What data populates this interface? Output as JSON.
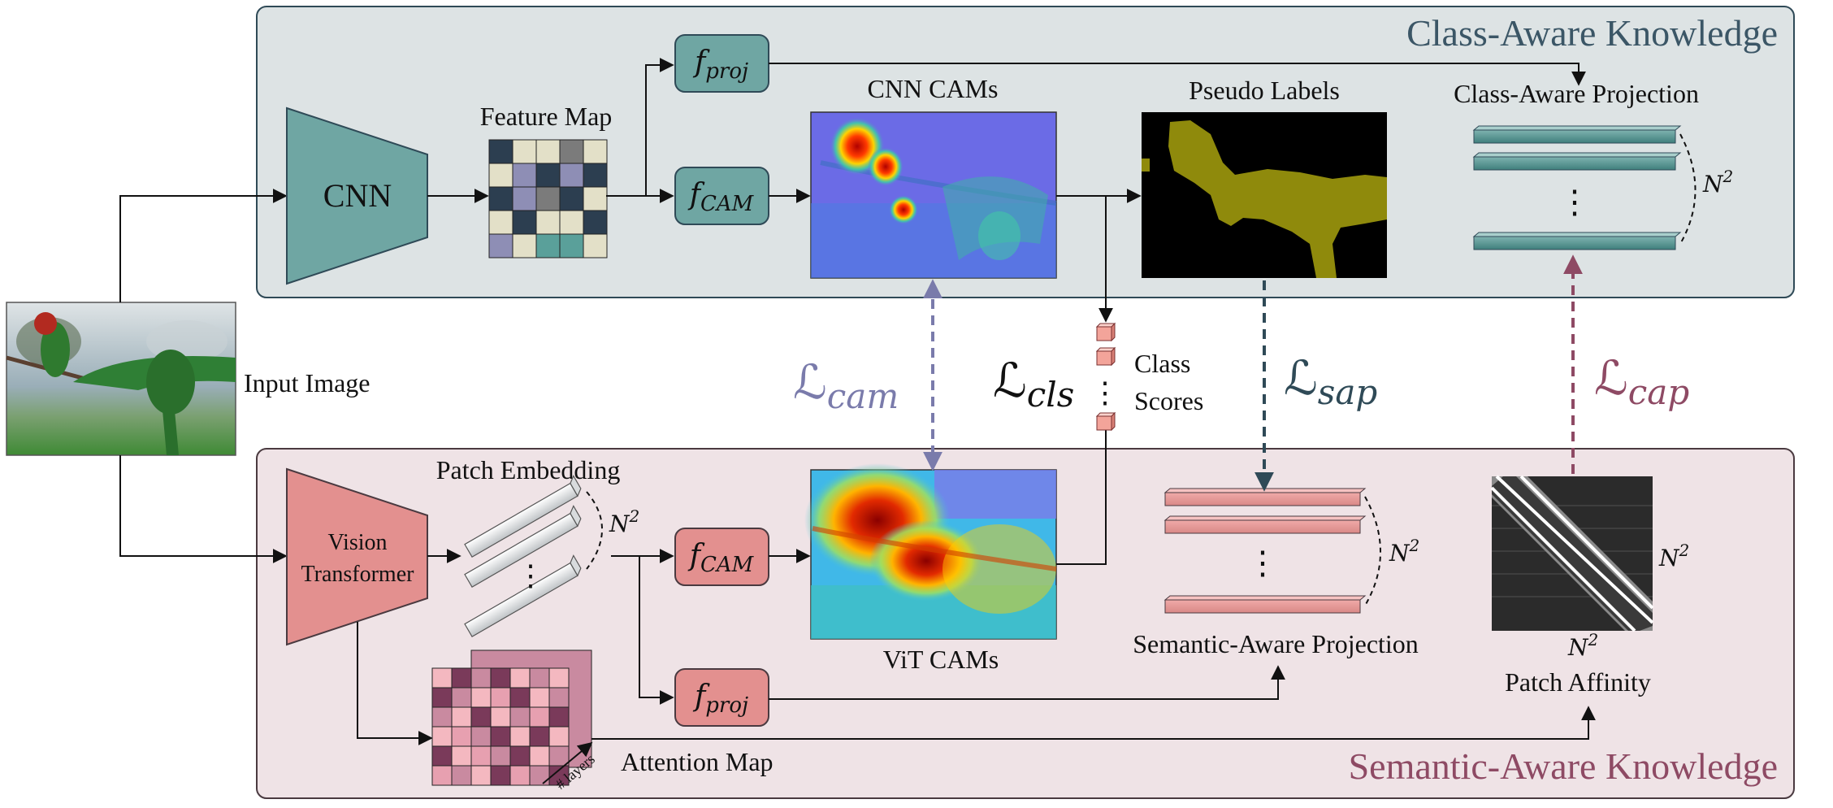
{
  "regions": {
    "top_title": "Class-Aware Knowledge",
    "bottom_title": "Semantic-Aware Knowledge"
  },
  "input": {
    "label": "Input Image"
  },
  "cnn_branch": {
    "backbone": "CNN",
    "feature_map": "Feature Map",
    "f_proj": {
      "base": "f",
      "sub": "proj"
    },
    "f_cam": {
      "base": "f",
      "sub": "CAM"
    },
    "cams": "CNN CAMs",
    "pseudo_labels": "Pseudo Labels",
    "projection": "Class-Aware Projection",
    "n2": "N",
    "n2_exp": "2",
    "dots": "⋮"
  },
  "vit_branch": {
    "backbone_line1": "Vision",
    "backbone_line2": "Transformer",
    "patch_embedding": "Patch Embedding",
    "n2": "N",
    "n2_exp": "2",
    "f_cam": {
      "base": "f",
      "sub": "CAM"
    },
    "f_proj": {
      "base": "f",
      "sub": "proj"
    },
    "cams": "ViT CAMs",
    "attention_map": "Attention Map",
    "layers": "# layers",
    "projection": "Semantic-Aware Projection",
    "patch_affinity": "Patch Affinity",
    "dots": "⋮"
  },
  "losses": {
    "cam": {
      "base": "ℒ",
      "sub": "cam"
    },
    "cls": {
      "base": "ℒ",
      "sub": "cls"
    },
    "sap": {
      "base": "ℒ",
      "sub": "sap"
    },
    "cap": {
      "base": "ℒ",
      "sub": "cap"
    }
  },
  "class_scores": {
    "line1": "Class",
    "line2": "Scores",
    "dots": "⋮"
  },
  "colors": {
    "top_bg": "#dde3e4",
    "bottom_bg": "#efe3e6",
    "cnn_teal": "#6fa6a3",
    "vit_pink": "#e3908f",
    "loss_cam": "#7a7bab",
    "loss_sap": "#2f4a57",
    "loss_cap": "#8e4a64"
  },
  "feature_map_colors": [
    [
      "#2c3e50",
      "#e3e0c8",
      "#e3e0c8",
      "#7b7b7b",
      "#e3e0c8"
    ],
    [
      "#e3e0c8",
      "#8e8eb5",
      "#2c3e50",
      "#8e8eb5",
      "#2c3e50"
    ],
    [
      "#2c3e50",
      "#8e8eb5",
      "#7b7b7b",
      "#2c3e50",
      "#e3e0c8"
    ],
    [
      "#e3e0c8",
      "#2c3e50",
      "#e3e0c8",
      "#e3e0c8",
      "#2c3e50"
    ],
    [
      "#8e8eb5",
      "#e3e0c8",
      "#5aa09a",
      "#5aa09a",
      "#e3e0c8"
    ]
  ],
  "attention_colors": [
    [
      "#f4b8c0",
      "#7a3a5a",
      "#c98aa0",
      "#7a3a5a",
      "#f4b8c0",
      "#c98aa0",
      "#f4b8c0"
    ],
    [
      "#7a3a5a",
      "#c98aa0",
      "#f4b8c0",
      "#e7a0b0",
      "#7a3a5a",
      "#f4b8c0",
      "#c98aa0"
    ],
    [
      "#c98aa0",
      "#f4b8c0",
      "#7a3a5a",
      "#f4b8c0",
      "#c98aa0",
      "#e7a0b0",
      "#7a3a5a"
    ],
    [
      "#f4b8c0",
      "#e7a0b0",
      "#c98aa0",
      "#7a3a5a",
      "#f4b8c0",
      "#7a3a5a",
      "#f4b8c0"
    ],
    [
      "#7a3a5a",
      "#f4b8c0",
      "#e7a0b0",
      "#c98aa0",
      "#7a3a5a",
      "#f4b8c0",
      "#c98aa0"
    ],
    [
      "#e7a0b0",
      "#c98aa0",
      "#f4b8c0",
      "#7a3a5a",
      "#e7a0b0",
      "#c98aa0",
      "#7a3a5a"
    ]
  ]
}
